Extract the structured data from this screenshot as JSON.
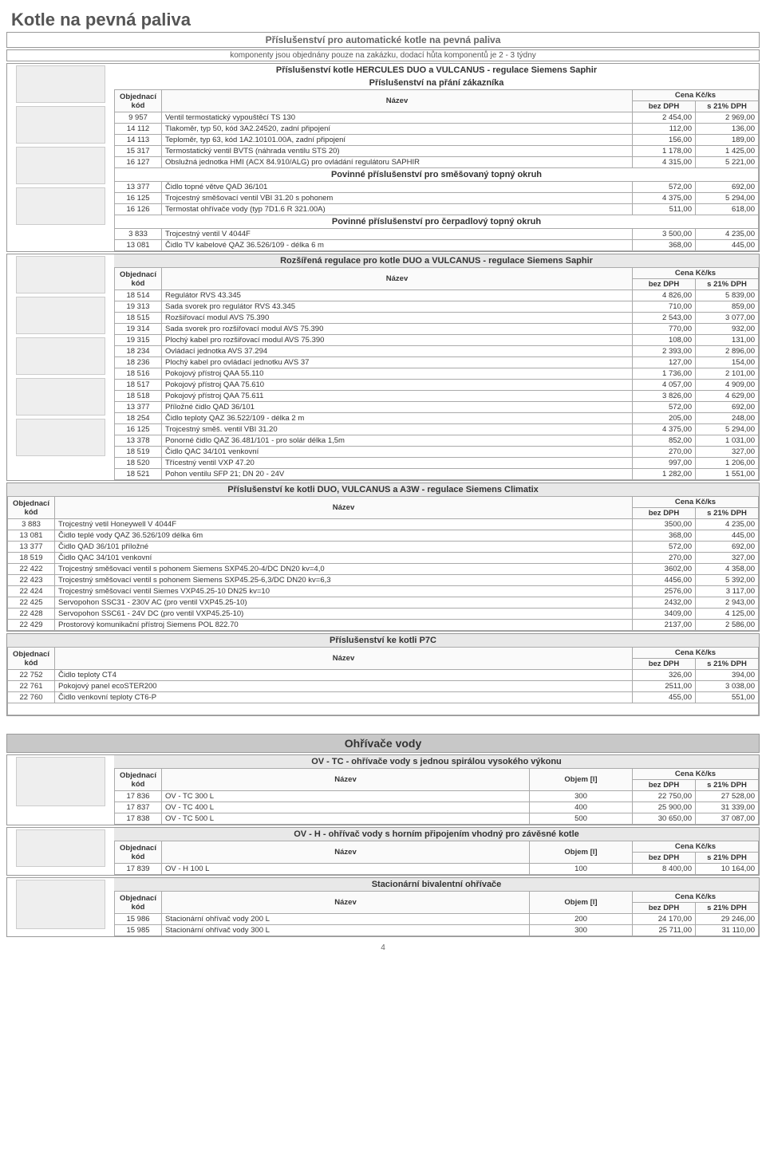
{
  "page_number": "4",
  "main_title": "Kotle na pevná paliva",
  "sub_title": "Příslušenství pro automatické kotle na pevná paliva",
  "note": "komponenty jsou objednány pouze na zakázku, dodací hůta komponentů je 2 - 3 týdny",
  "head_labels": {
    "kod_top": "Objednací",
    "kod_bot": "kód",
    "nazev": "Název",
    "objem": "Objem [l]",
    "cena": "Cena Kč/ks",
    "bez": "bez DPH",
    "s21": "s 21% DPH"
  },
  "sec1": {
    "title": "Příslušenství kotle HERCULES DUO a VULCANUS - regulace Siemens Saphir",
    "subtitle": "Příslušenství na přání zákazníka",
    "rows": [
      {
        "c": "9 957",
        "n": "Ventil termostatický vypouštěcí TS 130",
        "p1": "2 454,00",
        "p2": "2 969,00"
      },
      {
        "c": "14 112",
        "n": "Tlakoměr, typ 50, kód 3A2.24520, zadní připojení",
        "p1": "112,00",
        "p2": "136,00"
      },
      {
        "c": "14 113",
        "n": "Teploměr, typ 63, kód 1A2.10101.00A, zadní připojení",
        "p1": "156,00",
        "p2": "189,00"
      },
      {
        "c": "15 317",
        "n": "Termostatický ventil BVTS (náhrada ventilu STS 20)",
        "p1": "1 178,00",
        "p2": "1 425,00"
      },
      {
        "c": "16 127",
        "n": "Obslužná jednotka HMI (ACX 84.910/ALG) pro ovládání regulátoru SAPHIR",
        "p1": "4 315,00",
        "p2": "5 221,00"
      }
    ],
    "sub1": "Povinné příslušenství pro směšovaný topný okruh",
    "rows2": [
      {
        "c": "13 377",
        "n": "Čidlo topné větve QAD 36/101",
        "p1": "572,00",
        "p2": "692,00"
      },
      {
        "c": "16 125",
        "n": "Trojcestný směšovací ventil VBI 31.20 s pohonem",
        "p1": "4 375,00",
        "p2": "5 294,00"
      },
      {
        "c": "16 126",
        "n": "Termostat ohřívače vody (typ 7D1.6 R 321.00A)",
        "p1": "511,00",
        "p2": "618,00"
      }
    ],
    "sub2": "Povinné příslušenství pro čerpadlový topný okruh",
    "rows3": [
      {
        "c": "3 833",
        "n": "Trojcestný ventil V 4044F",
        "p1": "3 500,00",
        "p2": "4 235,00"
      },
      {
        "c": "13 081",
        "n": "Čidlo TV kabelové QAZ 36.526/109 - délka 6 m",
        "p1": "368,00",
        "p2": "445,00"
      }
    ]
  },
  "sec2": {
    "title": "Rozšířená regulace pro kotle DUO a VULCANUS - regulace Siemens Saphir",
    "rows": [
      {
        "c": "18 514",
        "n": "Regulátor RVS 43.345",
        "p1": "4 826,00",
        "p2": "5 839,00"
      },
      {
        "c": "19 313",
        "n": "Sada svorek pro regulátor RVS 43.345",
        "p1": "710,00",
        "p2": "859,00"
      },
      {
        "c": "18 515",
        "n": "Rozšiřovací modul AVS 75.390",
        "p1": "2 543,00",
        "p2": "3 077,00"
      },
      {
        "c": "19 314",
        "n": "Sada svorek pro rozšiřovací modul AVS 75.390",
        "p1": "770,00",
        "p2": "932,00"
      },
      {
        "c": "19 315",
        "n": "Plochý kabel pro rozšiřovací modul AVS 75.390",
        "p1": "108,00",
        "p2": "131,00"
      },
      {
        "c": "18 234",
        "n": "Ovládací jednotka AVS 37.294",
        "p1": "2 393,00",
        "p2": "2 896,00"
      },
      {
        "c": "18 236",
        "n": "Plochý kabel pro ovládací jednotku AVS 37",
        "p1": "127,00",
        "p2": "154,00"
      },
      {
        "c": "18 516",
        "n": "Pokojový přístroj QAA 55.110",
        "p1": "1 736,00",
        "p2": "2 101,00"
      },
      {
        "c": "18 517",
        "n": "Pokojový přístroj QAA 75.610",
        "p1": "4 057,00",
        "p2": "4 909,00"
      },
      {
        "c": "18 518",
        "n": "Pokojový přístroj QAA 75.611",
        "p1": "3 826,00",
        "p2": "4 629,00"
      },
      {
        "c": "13 377",
        "n": "Příložné čidlo QAD 36/101",
        "p1": "572,00",
        "p2": "692,00"
      },
      {
        "c": "18 254",
        "n": "Čidlo teploty QAZ 36.522/109 - délka 2 m",
        "p1": "205,00",
        "p2": "248,00"
      },
      {
        "c": "16 125",
        "n": "Trojcestný směš. ventil VBI 31.20",
        "p1": "4 375,00",
        "p2": "5 294,00"
      },
      {
        "c": "13 378",
        "n": "Ponorné čidlo QAZ 36.481/101 - pro solár délka 1,5m",
        "p1": "852,00",
        "p2": "1 031,00"
      },
      {
        "c": "18 519",
        "n": "Čidlo QAC 34/101 venkovní",
        "p1": "270,00",
        "p2": "327,00"
      },
      {
        "c": "18 520",
        "n": "Třícestný ventil VXP 47.20",
        "p1": "997,00",
        "p2": "1 206,00"
      },
      {
        "c": "18 521",
        "n": "Pohon ventilu SFP 21; DN 20 - 24V",
        "p1": "1 282,00",
        "p2": "1 551,00"
      }
    ]
  },
  "sec3": {
    "title": "Příslušenství ke kotli DUO, VULCANUS a A3W - regulace Siemens Climatix",
    "rows": [
      {
        "c": "3 883",
        "n": "Trojcestný vetil Honeywell V 4044F",
        "p1": "3500,00",
        "p2": "4 235,00"
      },
      {
        "c": "13 081",
        "n": "Čidlo teplé vody QAZ 36.526/109 délka 6m",
        "p1": "368,00",
        "p2": "445,00"
      },
      {
        "c": "13 377",
        "n": "Čidlo QAD 36/101 příložné",
        "p1": "572,00",
        "p2": "692,00"
      },
      {
        "c": "18 519",
        "n": "Čidlo QAC 34/101 venkovní",
        "p1": "270,00",
        "p2": "327,00"
      },
      {
        "c": "22 422",
        "n": "Trojcestný směšovací ventil s pohonem Siemens SXP45.20-4/DC DN20 kv=4,0",
        "p1": "3602,00",
        "p2": "4 358,00"
      },
      {
        "c": "22 423",
        "n": "Trojcestný směšovací ventil s pohonem Siemens SXP45.25-6,3/DC DN20 kv=6,3",
        "p1": "4456,00",
        "p2": "5 392,00"
      },
      {
        "c": "22 424",
        "n": "Trojcestný směšovací ventil Siemes VXP45.25-10 DN25 kv=10",
        "p1": "2576,00",
        "p2": "3 117,00"
      },
      {
        "c": "22 425",
        "n": "Servopohon SSC31 - 230V AC (pro ventil VXP45.25-10)",
        "p1": "2432,00",
        "p2": "2 943,00"
      },
      {
        "c": "22 428",
        "n": "Servopohon SSC61 - 24V DC (pro ventil VXP45.25-10)",
        "p1": "3409,00",
        "p2": "4 125,00"
      },
      {
        "c": "22 429",
        "n": "Prostorový komunikační přístroj Siemens POL 822.70",
        "p1": "2137,00",
        "p2": "2 586,00"
      }
    ]
  },
  "sec4": {
    "title": "Příslušenství ke kotli P7C",
    "rows": [
      {
        "c": "22 752",
        "n": "Čidlo teploty CT4",
        "p1": "326,00",
        "p2": "394,00"
      },
      {
        "c": "22 761",
        "n": "Pokojový panel ecoSTER200",
        "p1": "2511,00",
        "p2": "3 038,00"
      },
      {
        "c": "22 760",
        "n": "Čidlo venkovní teploty CT6-P",
        "p1": "455,00",
        "p2": "551,00"
      }
    ]
  },
  "ohrivace_band": "Ohřívače vody",
  "sec5": {
    "title": "OV - TC  - ohřívače vody s jednou spirálou vysokého výkonu",
    "rows": [
      {
        "c": "17 836",
        "n": "OV - TC 300 L",
        "v": "300",
        "p1": "22 750,00",
        "p2": "27 528,00"
      },
      {
        "c": "17 837",
        "n": "OV - TC 400 L",
        "v": "400",
        "p1": "25 900,00",
        "p2": "31 339,00"
      },
      {
        "c": "17 838",
        "n": "OV - TC 500 L",
        "v": "500",
        "p1": "30 650,00",
        "p2": "37 087,00"
      }
    ]
  },
  "sec6": {
    "title": "OV - H  - ohřívač vody s horním připojením vhodný pro závěsné kotle",
    "rows": [
      {
        "c": "17 839",
        "n": "OV - H 100 L",
        "v": "100",
        "p1": "8 400,00",
        "p2": "10 164,00"
      }
    ]
  },
  "sec7": {
    "title": "Stacionární bivalentní ohřívače",
    "rows": [
      {
        "c": "15 986",
        "n": "Stacionární ohřívač vody 200 L",
        "v": "200",
        "p1": "24 170,00",
        "p2": "29 246,00"
      },
      {
        "c": "15 985",
        "n": "Stacionární ohřívač vody 300 L",
        "v": "300",
        "p1": "25 711,00",
        "p2": "31 110,00"
      }
    ]
  }
}
